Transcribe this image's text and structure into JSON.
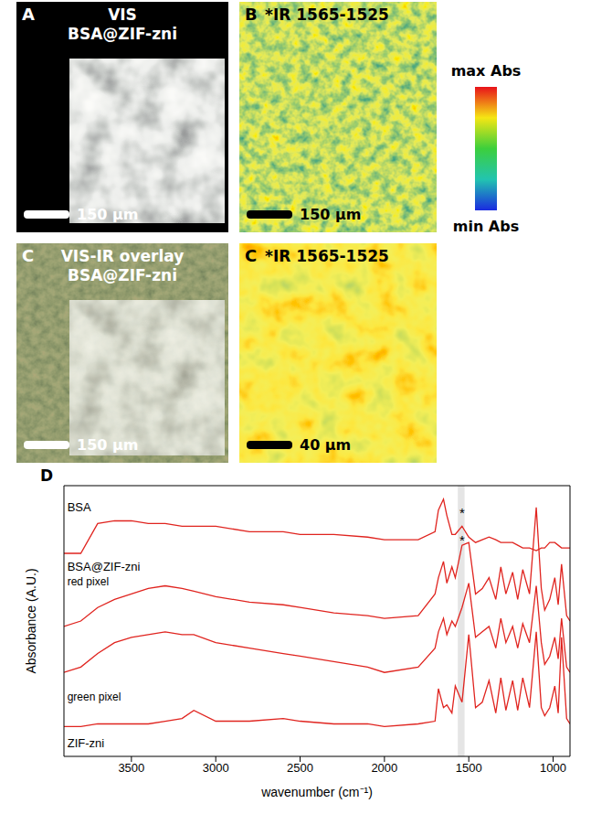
{
  "panels": [
    {
      "letter": "A",
      "title": "VIS",
      "subtitle": "BSA@ZIF-zni",
      "scale_bar": "150 µm"
    },
    {
      "letter": "B",
      "title": "*IR 1565-1525",
      "scale_bar": "150 µm"
    },
    {
      "letter": "C",
      "title": "VIS-IR overlay",
      "subtitle": "BSA@ZIF-zni",
      "scale_bar": "150 µm"
    },
    {
      "letter": "C",
      "title": "*IR 1565-1525",
      "scale_bar": "40 µm"
    }
  ],
  "colorbar": {
    "max_label": "max Abs",
    "min_label": "min Abs"
  },
  "chart_data": {
    "type": "line",
    "letter": "D",
    "x_label": "wavenumber (cm⁻¹)",
    "y_label": "Absorbance (A.U.)",
    "tick_labels": "x",
    "xlim": [
      3900,
      900
    ],
    "xticks": [
      3500,
      3000,
      2500,
      2000,
      1500,
      1000
    ],
    "ylim": [
      0,
      100
    ],
    "band": [
      1565,
      1525
    ],
    "x": [
      3900,
      3800,
      3700,
      3600,
      3500,
      3400,
      3300,
      3200,
      3130,
      3000,
      2800,
      2600,
      2500,
      2300,
      2100,
      2000,
      1800,
      1700,
      1680,
      1650,
      1630,
      1600,
      1580,
      1540,
      1500,
      1460,
      1420,
      1380,
      1340,
      1310,
      1280,
      1240,
      1210,
      1180,
      1140,
      1100,
      1070,
      1050,
      1020,
      990,
      970,
      950,
      920,
      900
    ],
    "series": [
      {
        "name": "BSA",
        "color": "#e0241f",
        "values": [
          75,
          75,
          86,
          87,
          87,
          86,
          86,
          85,
          85,
          85,
          83,
          83,
          82,
          82,
          81,
          80,
          80,
          83,
          91,
          95,
          89,
          82,
          82,
          85,
          81,
          79,
          80,
          81,
          80,
          79,
          79,
          79,
          78,
          77,
          77,
          76,
          77,
          77,
          79,
          79,
          78,
          77,
          77,
          77
        ]
      },
      {
        "name": "red pixel",
        "color": "#e0241f",
        "values": [
          48,
          50,
          55,
          58,
          60,
          62,
          63,
          62,
          61,
          59,
          57,
          56,
          55,
          53,
          52,
          51,
          52,
          60,
          66,
          72,
          64,
          70,
          66,
          78,
          79,
          60,
          62,
          66,
          58,
          70,
          60,
          68,
          58,
          69,
          60,
          92,
          62,
          54,
          58,
          66,
          56,
          71,
          52,
          50
        ]
      },
      {
        "name": "green pixel",
        "color": "#e0241f",
        "values": [
          31,
          33,
          38,
          42,
          44,
          45,
          46,
          45,
          45,
          42,
          40,
          38,
          37,
          35,
          33,
          31,
          33,
          40,
          46,
          51,
          45,
          50,
          48,
          55,
          64,
          44,
          46,
          48,
          40,
          51,
          42,
          48,
          40,
          49,
          42,
          63,
          42,
          34,
          37,
          44,
          36,
          51,
          33,
          31
        ]
      },
      {
        "name": "ZIF-zni",
        "color": "#e0241f",
        "values": [
          11,
          11,
          12,
          12,
          12,
          12,
          13,
          14,
          17,
          13,
          13,
          14,
          13,
          12,
          12,
          11,
          12,
          13,
          25,
          18,
          19,
          16,
          26,
          20,
          45,
          18,
          20,
          28,
          16,
          29,
          17,
          28,
          17,
          29,
          18,
          46,
          18,
          15,
          18,
          26,
          16,
          44,
          14,
          12
        ]
      }
    ],
    "annotations": [
      {
        "text": "BSA@ZIF-zni",
        "x": 3880,
        "y": 70
      },
      {
        "text": "*",
        "x": 1540,
        "y": 90
      },
      {
        "text": "*",
        "x": 1540,
        "y": 80
      }
    ]
  }
}
